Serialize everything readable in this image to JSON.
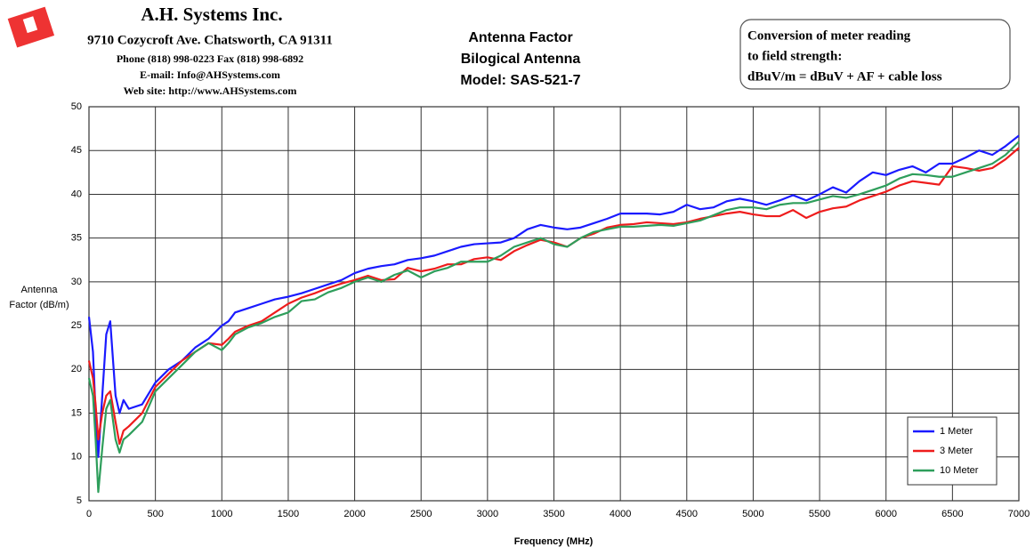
{
  "header": {
    "company": "A.H. Systems Inc.",
    "address": "9710 Cozycroft Ave. Chatsworth, CA 91311",
    "phone": "Phone (818) 998-0223 Fax (818) 998-6892",
    "email": "E-mail: Info@AHSystems.com",
    "web": "Web site: http://www.AHSystems.com"
  },
  "note": [
    "Conversion of meter reading",
    "to field strength:",
    "dBuV/m = dBuV + AF + cable loss"
  ],
  "chart_data": {
    "type": "line",
    "title": [
      "Antenna Factor",
      "Bilogical Antenna",
      "Model: SAS-521-7"
    ],
    "xlabel": "Frequency (MHz)",
    "ylabel": [
      "Antenna",
      "Factor (dB/m)"
    ],
    "x": [
      0,
      30,
      50,
      70,
      100,
      130,
      160,
      200,
      230,
      260,
      300,
      400,
      500,
      600,
      700,
      800,
      900,
      1000,
      1050,
      1100,
      1200,
      1300,
      1400,
      1500,
      1600,
      1700,
      1800,
      1900,
      2000,
      2100,
      2200,
      2300,
      2400,
      2500,
      2600,
      2700,
      2800,
      2900,
      3000,
      3100,
      3200,
      3300,
      3400,
      3500,
      3600,
      3700,
      3800,
      3900,
      4000,
      4100,
      4200,
      4300,
      4400,
      4500,
      4600,
      4700,
      4800,
      4900,
      5000,
      5100,
      5200,
      5300,
      5400,
      5500,
      5600,
      5700,
      5800,
      5900,
      6000,
      6100,
      6200,
      6300,
      6400,
      6500,
      6600,
      6700,
      6800,
      6900,
      7000
    ],
    "series": [
      {
        "name": "1 Meter",
        "color": "#1a1aff",
        "values": [
          26,
          22,
          15,
          10,
          17,
          24,
          25.5,
          17,
          15,
          16.5,
          15.5,
          16,
          18.5,
          20,
          21,
          22.5,
          23.5,
          25,
          25.5,
          26.5,
          27,
          27.5,
          28,
          28.3,
          28.7,
          29.2,
          29.7,
          30.2,
          31,
          31.5,
          31.8,
          32,
          32.5,
          32.7,
          33,
          33.5,
          34,
          34.3,
          34.4,
          34.5,
          35,
          36,
          36.5,
          36.2,
          36,
          36.2,
          36.7,
          37.2,
          37.8,
          37.8,
          37.8,
          37.7,
          38,
          38.8,
          38.3,
          38.5,
          39.2,
          39.5,
          39.2,
          38.8,
          39.3,
          39.9,
          39.3,
          40,
          40.8,
          40.2,
          41.5,
          42.5,
          42.2,
          42.8,
          43.2,
          42.5,
          43.5,
          43.5,
          44.2,
          45,
          44.5,
          45.5,
          46.7
        ]
      },
      {
        "name": "3 Meter",
        "color": "#ee1c1c",
        "values": [
          21,
          19,
          16,
          12,
          15,
          17,
          17.5,
          14,
          11.5,
          13,
          13.5,
          15,
          18,
          19.5,
          21,
          22,
          23,
          22.8,
          23.5,
          24.3,
          25,
          25.5,
          26.5,
          27.5,
          28.2,
          28.7,
          29.3,
          29.8,
          30.2,
          30.7,
          30.2,
          30.3,
          31.6,
          31.2,
          31.5,
          32,
          32,
          32.6,
          32.8,
          32.5,
          33.5,
          34.2,
          34.8,
          34.5,
          34,
          35,
          35.5,
          36.2,
          36.5,
          36.6,
          36.8,
          36.7,
          36.6,
          36.8,
          37.2,
          37.5,
          37.8,
          38,
          37.7,
          37.5,
          37.5,
          38.2,
          37.3,
          38,
          38.4,
          38.6,
          39.3,
          39.8,
          40.3,
          41,
          41.5,
          41.3,
          41.1,
          43.2,
          43,
          42.7,
          43,
          44,
          45.3
        ]
      },
      {
        "name": "10 Meter",
        "color": "#2e9e5b",
        "values": [
          19,
          17,
          12,
          6,
          11,
          15.5,
          16.5,
          12,
          10.5,
          12,
          12.5,
          14,
          17.5,
          19,
          20.5,
          22,
          23,
          22.2,
          23,
          24,
          24.8,
          25.3,
          26,
          26.5,
          27.8,
          28,
          28.8,
          29.3,
          30,
          30.5,
          30,
          30.8,
          31.3,
          30.5,
          31.2,
          31.6,
          32.3,
          32.3,
          32.3,
          33,
          34,
          34.5,
          35,
          34.3,
          34,
          35,
          35.7,
          36,
          36.3,
          36.3,
          36.4,
          36.5,
          36.4,
          36.7,
          37,
          37.6,
          38.2,
          38.5,
          38.5,
          38.3,
          38.8,
          39,
          39,
          39.4,
          39.8,
          39.6,
          40,
          40.5,
          41,
          41.8,
          42.3,
          42.2,
          42,
          42,
          42.5,
          43,
          43.5,
          44.5,
          46
        ]
      }
    ],
    "xlim": [
      0,
      7000
    ],
    "xticks": [
      0,
      500,
      1000,
      1500,
      2000,
      2500,
      3000,
      3500,
      4000,
      4500,
      5000,
      5500,
      6000,
      6500,
      7000
    ],
    "ylim": [
      5,
      50
    ],
    "yticks": [
      5,
      10,
      15,
      20,
      25,
      30,
      35,
      40,
      45,
      50
    ],
    "grid": true,
    "legend": "bottom-right"
  }
}
